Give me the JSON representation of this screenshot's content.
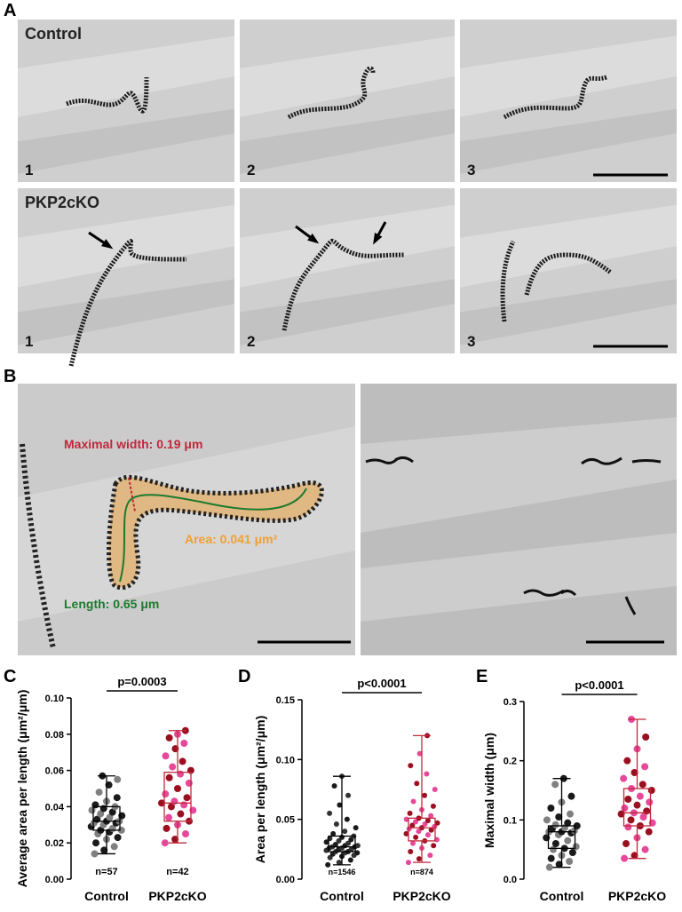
{
  "panel_a": {
    "label": "A",
    "rows": [
      {
        "condition": "Control",
        "frames": [
          "1",
          "2",
          "3"
        ]
      },
      {
        "condition": "PKP2cKO",
        "frames": [
          "1",
          "2",
          "3"
        ]
      }
    ]
  },
  "panel_b": {
    "label": "B",
    "annotations": [
      {
        "text": "Maximal width: 0.19 μm",
        "color": "#c0283c"
      },
      {
        "text": "Area: 0.041 μm²",
        "color": "#f0a030"
      },
      {
        "text": "Length: 0.65 μm",
        "color": "#1e7a2e"
      }
    ]
  },
  "chart_data": [
    {
      "type": "box",
      "panel_label": "C",
      "ylabel": "Average area per length (μm²/μm)",
      "categories": [
        "Control",
        "PKP2cKO"
      ],
      "ylim": [
        0,
        0.1
      ],
      "yticks": [
        {
          "value": 0,
          "label": "0.00"
        },
        {
          "value": 0.02,
          "label": "0.02"
        },
        {
          "value": 0.04,
          "label": "0.04"
        },
        {
          "value": 0.06,
          "label": "0.06"
        },
        {
          "value": 0.08,
          "label": "0.08"
        },
        {
          "value": 0.1,
          "label": "0.10"
        }
      ],
      "annotation": "p=0.0003",
      "series": [
        {
          "color": "#000000",
          "point_colors": [
            "#808080",
            "#1a1a1a"
          ],
          "n_label": "n=57",
          "stats": {
            "min": 0.014,
            "q1": 0.027,
            "median": 0.032,
            "q3": 0.04,
            "max": 0.057
          },
          "values": [
            0.014,
            0.016,
            0.018,
            0.02,
            0.022,
            0.023,
            0.025,
            0.026,
            0.027,
            0.027,
            0.028,
            0.029,
            0.03,
            0.031,
            0.031,
            0.032,
            0.032,
            0.033,
            0.034,
            0.035,
            0.036,
            0.037,
            0.038,
            0.039,
            0.04,
            0.041,
            0.043,
            0.045,
            0.048,
            0.052,
            0.055,
            0.057
          ]
        },
        {
          "color": "#c0283c",
          "point_colors": [
            "#e8489a",
            "#9a1020"
          ],
          "n_label": "n=42",
          "stats": {
            "min": 0.02,
            "q1": 0.032,
            "median": 0.042,
            "q3": 0.059,
            "max": 0.082
          },
          "values": [
            0.02,
            0.022,
            0.025,
            0.028,
            0.03,
            0.032,
            0.034,
            0.036,
            0.038,
            0.04,
            0.041,
            0.042,
            0.043,
            0.045,
            0.047,
            0.05,
            0.053,
            0.056,
            0.058,
            0.06,
            0.062,
            0.065,
            0.068,
            0.072,
            0.075,
            0.078,
            0.08,
            0.082
          ]
        }
      ]
    },
    {
      "type": "box",
      "panel_label": "D",
      "ylabel": "Area per length (μm²/μm)",
      "categories": [
        "Control",
        "PKP2cKO"
      ],
      "ylim": [
        0,
        0.15
      ],
      "yticks": [
        {
          "value": 0,
          "label": "0.00"
        },
        {
          "value": 0.05,
          "label": "0.05"
        },
        {
          "value": 0.1,
          "label": "0.10"
        },
        {
          "value": 0.15,
          "label": "0.15"
        }
      ],
      "annotation": "p<0.0001",
      "series": [
        {
          "color": "#000000",
          "point_colors": [
            "#1a1a1a",
            "#333333"
          ],
          "n_label": "n=1546",
          "stats": {
            "min": 0.012,
            "q1": 0.023,
            "median": 0.027,
            "q3": 0.036,
            "max": 0.086
          },
          "values": [
            0.012,
            0.014,
            0.016,
            0.018,
            0.019,
            0.02,
            0.021,
            0.022,
            0.022,
            0.023,
            0.023,
            0.024,
            0.025,
            0.025,
            0.026,
            0.026,
            0.027,
            0.027,
            0.028,
            0.028,
            0.029,
            0.03,
            0.031,
            0.032,
            0.033,
            0.034,
            0.035,
            0.036,
            0.038,
            0.04,
            0.043,
            0.046,
            0.05,
            0.055,
            0.062,
            0.07,
            0.078,
            0.086
          ]
        },
        {
          "color": "#c0283c",
          "point_colors": [
            "#e8489a",
            "#9a1020"
          ],
          "n_label": "n=874",
          "stats": {
            "min": 0.014,
            "q1": 0.032,
            "median": 0.043,
            "q3": 0.051,
            "max": 0.12
          },
          "values": [
            0.014,
            0.017,
            0.02,
            0.023,
            0.026,
            0.028,
            0.03,
            0.032,
            0.033,
            0.035,
            0.037,
            0.038,
            0.04,
            0.041,
            0.042,
            0.043,
            0.044,
            0.045,
            0.046,
            0.047,
            0.048,
            0.049,
            0.05,
            0.051,
            0.053,
            0.055,
            0.058,
            0.061,
            0.065,
            0.07,
            0.075,
            0.08,
            0.088,
            0.095,
            0.105,
            0.12
          ]
        }
      ]
    },
    {
      "type": "box",
      "panel_label": "E",
      "ylabel": "Maximal width (μm)",
      "categories": [
        "Control",
        "PKP2cKO"
      ],
      "ylim": [
        0,
        0.3
      ],
      "yticks": [
        {
          "value": 0,
          "label": "0.0"
        },
        {
          "value": 0.1,
          "label": "0.1"
        },
        {
          "value": 0.2,
          "label": "0.2"
        },
        {
          "value": 0.3,
          "label": "0.3"
        }
      ],
      "annotation": "p<0.0001",
      "series": [
        {
          "color": "#000000",
          "point_colors": [
            "#808080",
            "#1a1a1a"
          ],
          "stats": {
            "min": 0.02,
            "q1": 0.052,
            "median": 0.08,
            "q3": 0.09,
            "max": 0.17
          },
          "values": [
            0.02,
            0.025,
            0.03,
            0.035,
            0.04,
            0.045,
            0.05,
            0.052,
            0.055,
            0.06,
            0.065,
            0.07,
            0.075,
            0.078,
            0.08,
            0.08,
            0.082,
            0.085,
            0.087,
            0.09,
            0.092,
            0.095,
            0.1,
            0.105,
            0.11,
            0.12,
            0.13,
            0.14,
            0.16,
            0.17
          ]
        },
        {
          "color": "#c0283c",
          "point_colors": [
            "#e8489a",
            "#9a1020"
          ],
          "stats": {
            "min": 0.035,
            "q1": 0.09,
            "median": 0.112,
            "q3": 0.153,
            "max": 0.27
          },
          "values": [
            0.035,
            0.04,
            0.05,
            0.06,
            0.07,
            0.08,
            0.088,
            0.09,
            0.095,
            0.1,
            0.105,
            0.11,
            0.112,
            0.115,
            0.12,
            0.125,
            0.13,
            0.135,
            0.14,
            0.15,
            0.153,
            0.16,
            0.17,
            0.18,
            0.19,
            0.2,
            0.22,
            0.24,
            0.27
          ]
        }
      ]
    }
  ]
}
